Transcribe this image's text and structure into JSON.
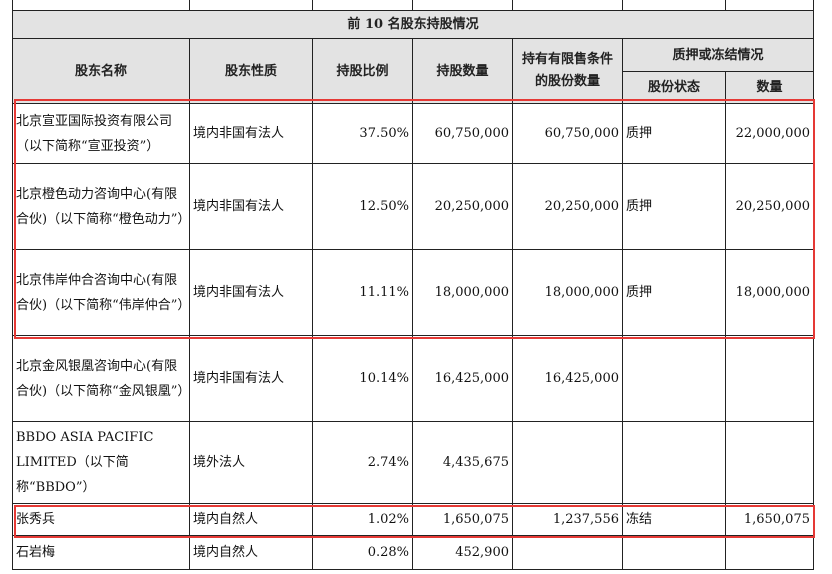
{
  "table": {
    "title": "前 10 名股东持股情况",
    "headers": {
      "name": "股东名称",
      "nature": "股东性质",
      "ratio": "持股比例",
      "count": "持股数量",
      "restricted": "持有有限售条件的股份数量",
      "pledge_group": "质押或冻结情况",
      "status": "股份状态",
      "quantity": "数量"
    },
    "rows": [
      {
        "name": "北京宣亚国际投资有限公司（以下简称“宣亚投资”）",
        "nature": "境内非国有法人",
        "ratio": "37.50%",
        "count": "60,750,000",
        "restricted": "60,750,000",
        "status": "质押",
        "quantity": "22,000,000"
      },
      {
        "name": "北京橙色动力咨询中心(有限合伙)（以下简称“橙色动力”）",
        "nature": "境内非国有法人",
        "ratio": "12.50%",
        "count": "20,250,000",
        "restricted": "20,250,000",
        "status": "质押",
        "quantity": "20,250,000"
      },
      {
        "name": "北京伟岸仲合咨询中心(有限合伙)（以下简称“伟岸仲合”）",
        "nature": "境内非国有法人",
        "ratio": "11.11%",
        "count": "18,000,000",
        "restricted": "18,000,000",
        "status": "质押",
        "quantity": "18,000,000"
      },
      {
        "name": "北京金风银凰咨询中心(有限合伙)（以下简称“金风银凰”）",
        "nature": "境内非国有法人",
        "ratio": "10.14%",
        "count": "16,425,000",
        "restricted": "16,425,000",
        "status": "",
        "quantity": ""
      },
      {
        "name": "BBDO ASIA PACIFIC LIMITED（以下简称“BBDO”）",
        "nature": "境外法人",
        "ratio": "2.74%",
        "count": "4,435,675",
        "restricted": "",
        "status": "",
        "quantity": ""
      },
      {
        "name": "张秀兵",
        "nature": "境内自然人",
        "ratio": "1.02%",
        "count": "1,650,075",
        "restricted": "1,237,556",
        "status": "冻结",
        "quantity": "1,650,075"
      },
      {
        "name": "石岩梅",
        "nature": "境内自然人",
        "ratio": "0.28%",
        "count": "452,900",
        "restricted": "",
        "status": "",
        "quantity": ""
      }
    ]
  },
  "highlight_color": "#e53935"
}
